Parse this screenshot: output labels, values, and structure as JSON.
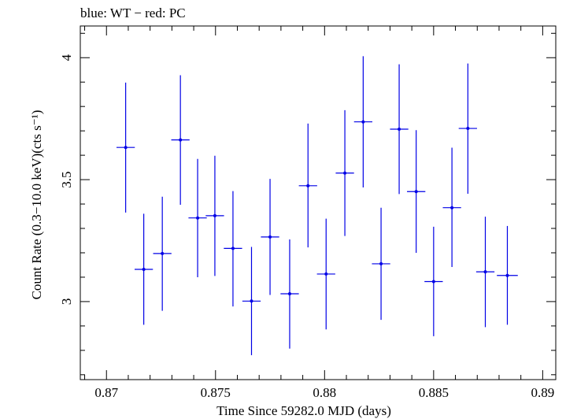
{
  "chart_data": {
    "type": "scatter",
    "title": "blue: WT − red: PC",
    "xlabel": "Time Since 59282.0 MJD (days)",
    "ylabel": "Count Rate (0.3−10.0 keV)(cts s⁻¹)",
    "xlim": [
      0.8688,
      0.8906
    ],
    "ylim": [
      2.68,
      4.13
    ],
    "x_ticks": [
      0.87,
      0.875,
      0.88,
      0.885,
      0.89
    ],
    "x_tick_labels": [
      "0.87",
      "0.875",
      "0.88",
      "0.885",
      "0.89"
    ],
    "y_ticks": [
      3,
      3.5,
      4
    ],
    "y_tick_labels": [
      "3",
      "3.5",
      "4"
    ],
    "grid": false,
    "series": [
      {
        "color": "#0000e6",
        "points": [
          {
            "x": 0.87088,
            "y": 3.632,
            "xerr": 0.00042,
            "ylo": 3.365,
            "yhi": 3.898
          },
          {
            "x": 0.87171,
            "y": 3.132,
            "xerr": 0.00042,
            "ylo": 2.905,
            "yhi": 3.36
          },
          {
            "x": 0.87256,
            "y": 3.197,
            "xerr": 0.00042,
            "ylo": 2.962,
            "yhi": 3.43
          },
          {
            "x": 0.87339,
            "y": 3.663,
            "xerr": 0.00042,
            "ylo": 3.397,
            "yhi": 3.928
          },
          {
            "x": 0.87418,
            "y": 3.343,
            "xerr": 0.00042,
            "ylo": 3.1,
            "yhi": 3.585
          },
          {
            "x": 0.87497,
            "y": 3.352,
            "xerr": 0.00042,
            "ylo": 3.105,
            "yhi": 3.598
          },
          {
            "x": 0.8758,
            "y": 3.218,
            "xerr": 0.00042,
            "ylo": 2.98,
            "yhi": 3.453
          },
          {
            "x": 0.87665,
            "y": 3.002,
            "xerr": 0.00042,
            "ylo": 2.78,
            "yhi": 3.224
          },
          {
            "x": 0.8775,
            "y": 3.265,
            "xerr": 0.00042,
            "ylo": 3.027,
            "yhi": 3.503
          },
          {
            "x": 0.8784,
            "y": 3.032,
            "xerr": 0.00042,
            "ylo": 2.807,
            "yhi": 3.255
          },
          {
            "x": 0.87924,
            "y": 3.475,
            "xerr": 0.00042,
            "ylo": 3.222,
            "yhi": 3.73
          },
          {
            "x": 0.88007,
            "y": 3.113,
            "xerr": 0.00042,
            "ylo": 2.886,
            "yhi": 3.34
          },
          {
            "x": 0.88093,
            "y": 3.527,
            "xerr": 0.00042,
            "ylo": 3.269,
            "yhi": 3.785
          },
          {
            "x": 0.88177,
            "y": 3.737,
            "xerr": 0.00042,
            "ylo": 3.468,
            "yhi": 4.006
          },
          {
            "x": 0.88259,
            "y": 3.155,
            "xerr": 0.00042,
            "ylo": 2.925,
            "yhi": 3.385
          },
          {
            "x": 0.88342,
            "y": 3.707,
            "xerr": 0.00042,
            "ylo": 3.441,
            "yhi": 3.973
          },
          {
            "x": 0.8842,
            "y": 3.451,
            "xerr": 0.00042,
            "ylo": 3.2,
            "yhi": 3.703
          },
          {
            "x": 0.885,
            "y": 3.082,
            "xerr": 0.00042,
            "ylo": 2.858,
            "yhi": 3.307
          },
          {
            "x": 0.88584,
            "y": 3.385,
            "xerr": 0.00042,
            "ylo": 3.142,
            "yhi": 3.631
          },
          {
            "x": 0.88657,
            "y": 3.71,
            "xerr": 0.00042,
            "ylo": 3.442,
            "yhi": 3.976
          },
          {
            "x": 0.88737,
            "y": 3.122,
            "xerr": 0.00042,
            "ylo": 2.895,
            "yhi": 3.348
          },
          {
            "x": 0.88838,
            "y": 3.107,
            "xerr": 0.00048,
            "ylo": 2.905,
            "yhi": 3.31
          }
        ]
      }
    ]
  }
}
